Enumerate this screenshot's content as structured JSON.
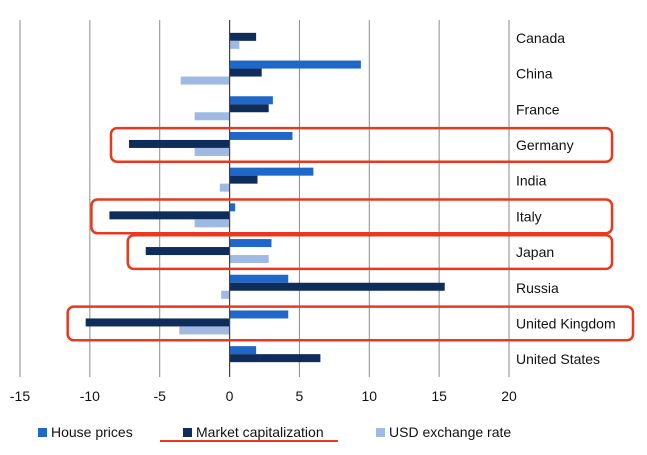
{
  "chart_data": {
    "type": "bar",
    "orientation": "horizontal",
    "categories": [
      "Canada",
      "China",
      "France",
      "Germany",
      "India",
      "Italy",
      "Japan",
      "Russia",
      "United Kingdom",
      "United States"
    ],
    "series": [
      {
        "name": "House prices",
        "color": "#1f67c8",
        "values": [
          0,
          9.4,
          3.1,
          4.5,
          6.0,
          0.4,
          3.0,
          4.2,
          4.2,
          1.9
        ]
      },
      {
        "name": "Market capitalization",
        "color": "#0f2d5a",
        "values": [
          1.9,
          2.3,
          2.8,
          -7.2,
          2.0,
          -8.6,
          -6.0,
          15.4,
          -10.3,
          6.5
        ]
      },
      {
        "name": "USD exchange rate",
        "color": "#9fb9e2",
        "values": [
          0.7,
          -3.5,
          -2.5,
          -2.5,
          -0.7,
          -2.5,
          2.8,
          -0.6,
          -3.6,
          0
        ]
      }
    ],
    "xlim": [
      -15,
      20
    ],
    "xticks": [
      "-15",
      "-10",
      "-5",
      "0",
      "5",
      "10",
      "15",
      "20"
    ],
    "grid": true,
    "legend_position": "bottom",
    "highlighted_categories": [
      "Germany",
      "Italy",
      "Japan",
      "United Kingdom"
    ],
    "highlighted_legend_entry": "Market capitalization",
    "highlight_color": "#e8391e"
  }
}
